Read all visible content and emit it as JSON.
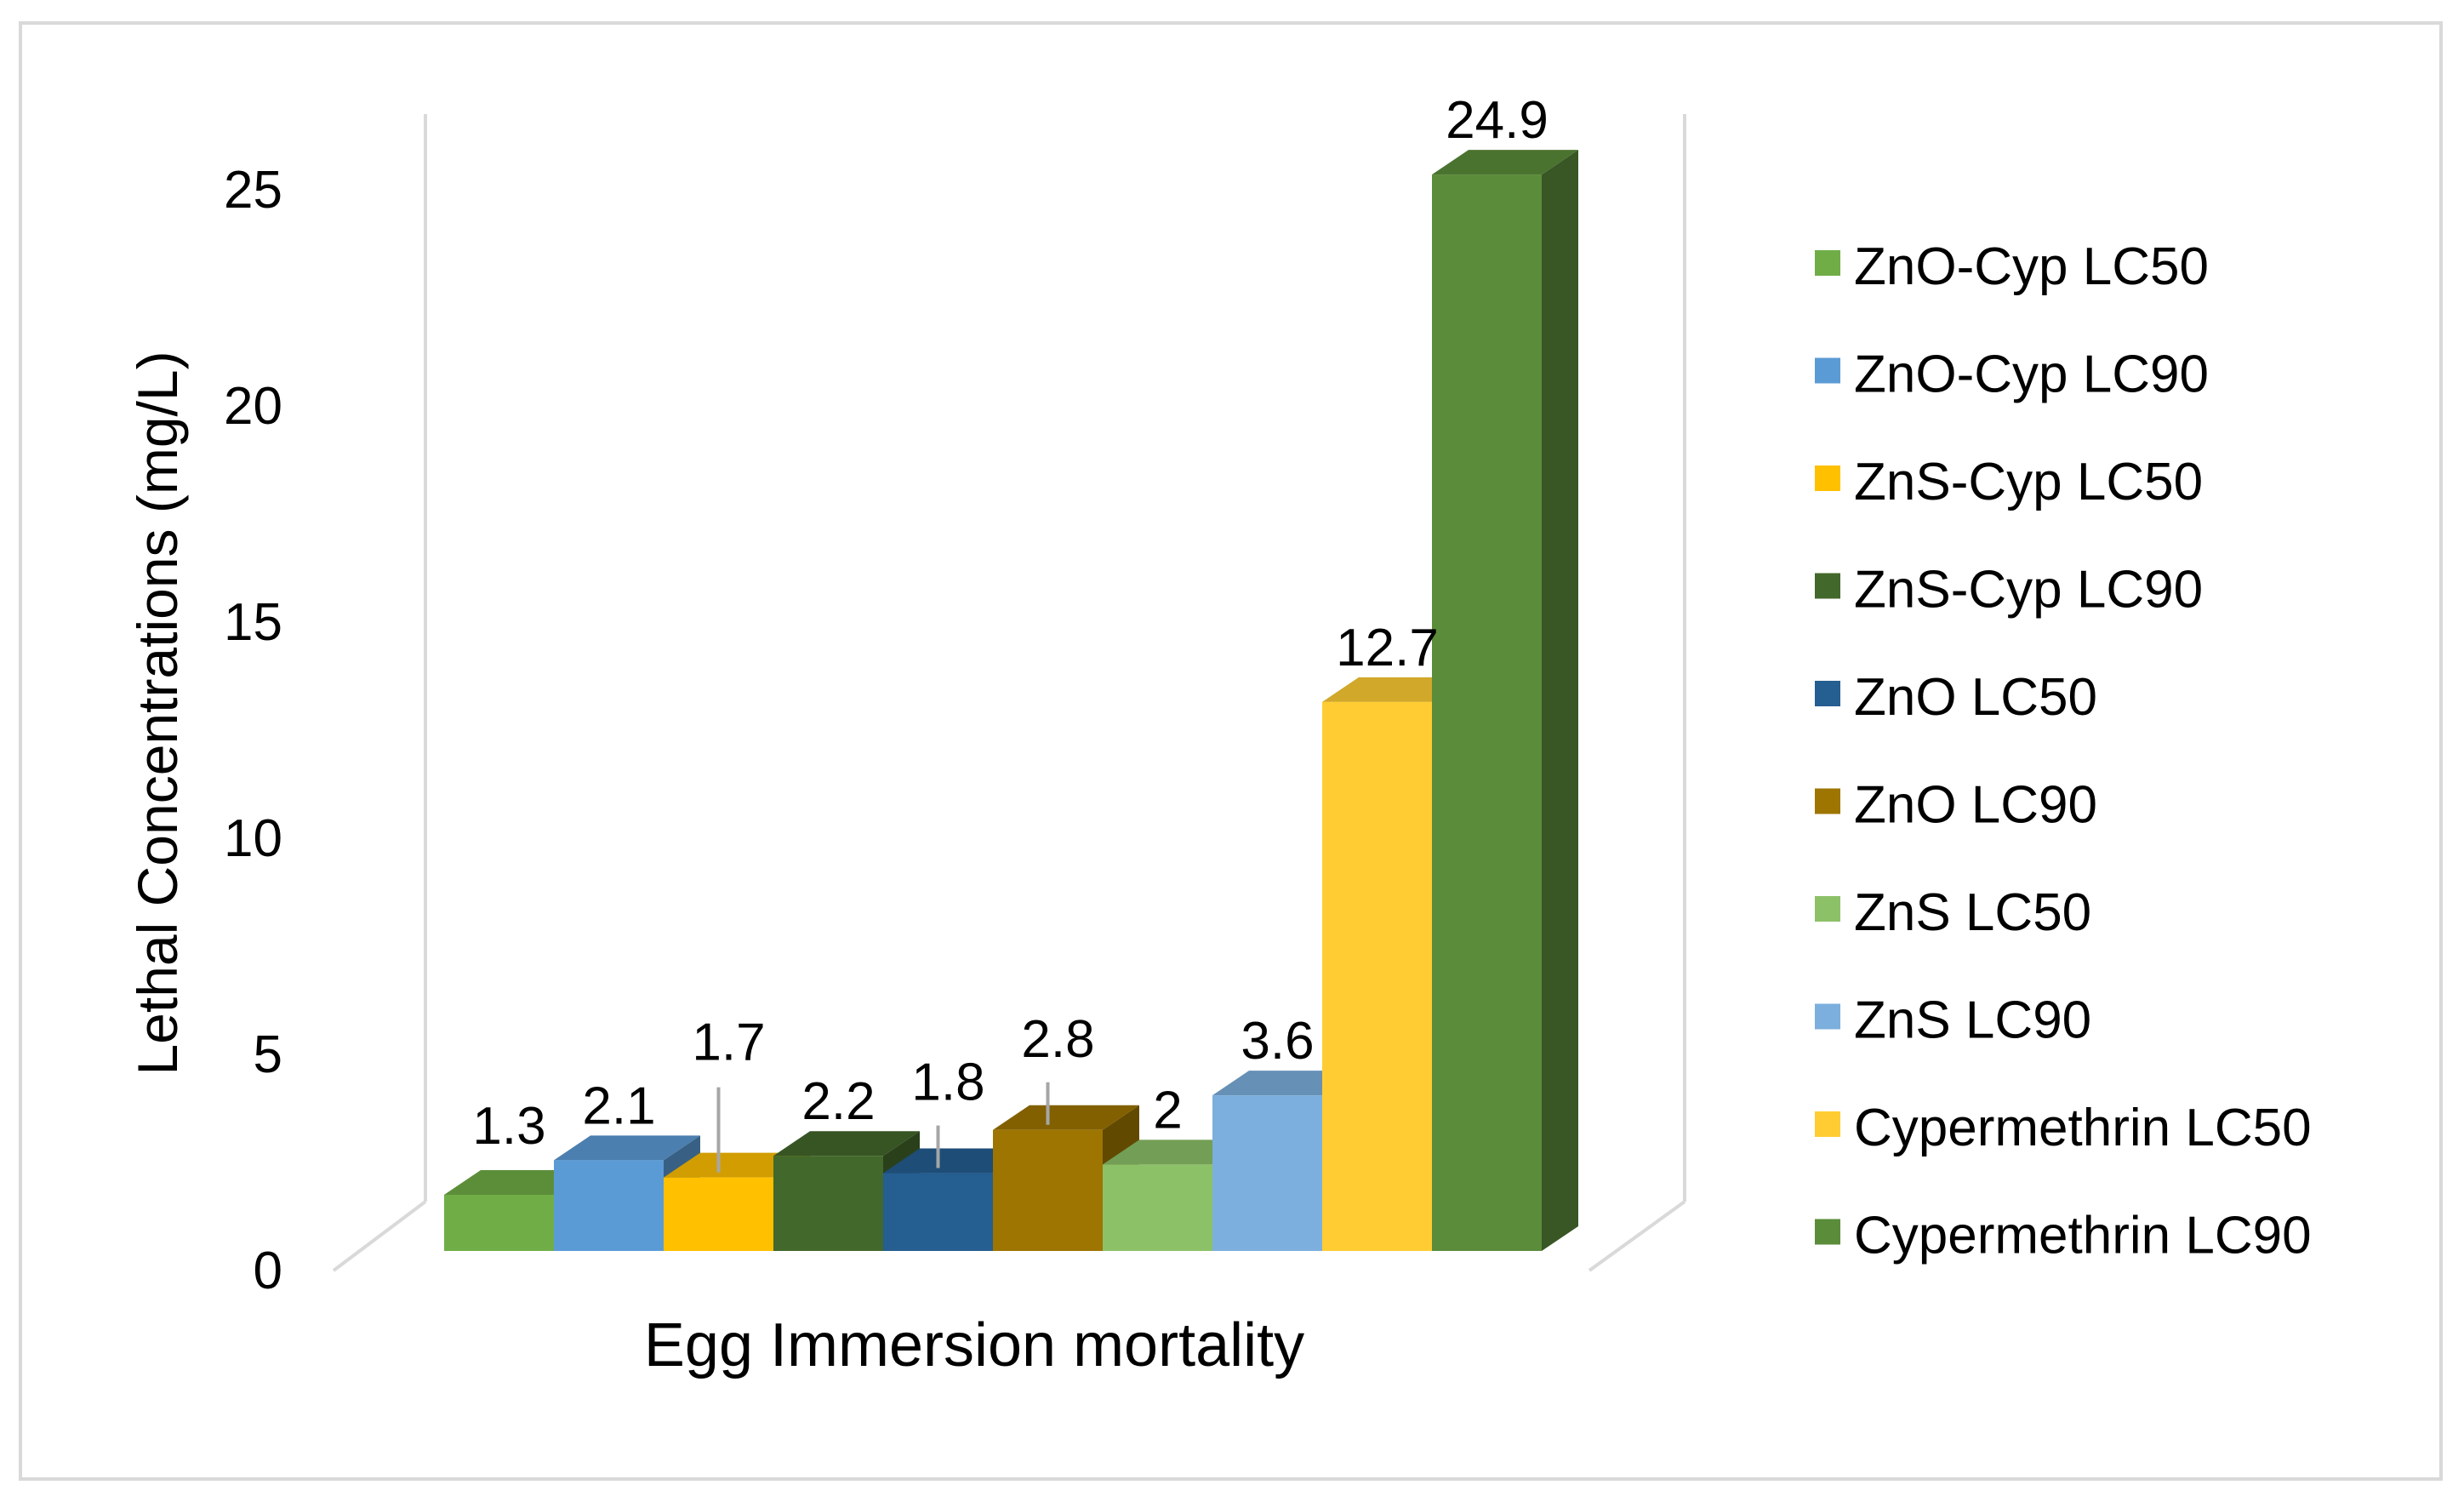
{
  "chart_data": {
    "type": "bar",
    "style": "3d-clustered-column",
    "xlabel": "Egg Immersion mortality",
    "ylabel": "Lethal Concentrations (mg/L)",
    "ylim": [
      0,
      25
    ],
    "yticks": [
      0,
      5,
      10,
      15,
      20,
      25
    ],
    "categories": [
      "Egg Immersion mortality"
    ],
    "legend_position": "right",
    "series": [
      {
        "name": "ZnO-Cyp LC50",
        "values": [
          1.3
        ],
        "label": "1.3",
        "color": "#70AD47",
        "error_bar": false
      },
      {
        "name": "ZnO-Cyp LC90",
        "values": [
          2.1
        ],
        "label": "2.1",
        "color": "#5B9BD5",
        "error_bar": false
      },
      {
        "name": "ZnS-Cyp LC50",
        "values": [
          1.7
        ],
        "label": "1.7",
        "color": "#FFC000",
        "error_bar": true
      },
      {
        "name": "ZnS-Cyp LC90",
        "values": [
          2.2
        ],
        "label": "2.2",
        "color": "#43682B",
        "error_bar": false
      },
      {
        "name": "ZnO LC50",
        "values": [
          1.8
        ],
        "label": "1.8",
        "color": "#255E91",
        "error_bar": true
      },
      {
        "name": "ZnO LC90",
        "values": [
          2.8
        ],
        "label": "2.8",
        "color": "#9E7500",
        "error_bar": true
      },
      {
        "name": "ZnS LC50",
        "values": [
          2
        ],
        "label": "2",
        "color": "#8CC168",
        "error_bar": false
      },
      {
        "name": "ZnS LC90",
        "values": [
          3.6
        ],
        "label": "3.6",
        "color": "#7CAFDD",
        "error_bar": false
      },
      {
        "name": "Cypermethrin LC50",
        "values": [
          12.7
        ],
        "label": "12.7",
        "color": "#FFCD33",
        "error_bar": false
      },
      {
        "name": "Cypermethrin LC90",
        "values": [
          24.9
        ],
        "label": "24.9",
        "color": "#5B8C3A",
        "error_bar": false
      }
    ]
  }
}
